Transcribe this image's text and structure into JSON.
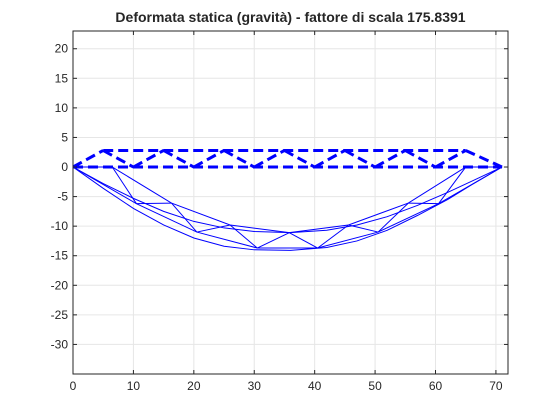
{
  "chart_data": {
    "type": "line",
    "title": "Deformata statica (gravità) - fattore di scala 175.8391",
    "xlabel": "",
    "ylabel": "",
    "xlim": [
      0,
      72
    ],
    "ylim": [
      -35,
      23
    ],
    "grid": true,
    "x_ticks": [
      0,
      10,
      20,
      30,
      40,
      50,
      60,
      70
    ],
    "y_ticks": [
      20,
      15,
      10,
      5,
      0,
      -5,
      -10,
      -15,
      -20,
      -25,
      -30
    ],
    "series": [
      {
        "role": "undeformed-truss",
        "line_style": "dashed",
        "color": "#0000ff",
        "segments": [
          [
            [
              0,
              0
            ],
            [
              71,
              0
            ]
          ],
          [
            [
              5,
              2.8
            ],
            [
              65,
              2.8
            ]
          ],
          [
            [
              0,
              0
            ],
            [
              5,
              2.8
            ]
          ],
          [
            [
              5,
              2.8
            ],
            [
              10,
              0
            ]
          ],
          [
            [
              10,
              0
            ],
            [
              15,
              2.8
            ]
          ],
          [
            [
              15,
              2.8
            ],
            [
              20,
              0
            ]
          ],
          [
            [
              20,
              0
            ],
            [
              25,
              2.8
            ]
          ],
          [
            [
              25,
              2.8
            ],
            [
              30,
              0
            ]
          ],
          [
            [
              30,
              0
            ],
            [
              35,
              2.8
            ]
          ],
          [
            [
              35,
              2.8
            ],
            [
              40,
              0
            ]
          ],
          [
            [
              40,
              0
            ],
            [
              45,
              2.8
            ]
          ],
          [
            [
              45,
              2.8
            ],
            [
              50,
              0
            ]
          ],
          [
            [
              50,
              0
            ],
            [
              55,
              2.8
            ]
          ],
          [
            [
              55,
              2.8
            ],
            [
              60,
              0
            ]
          ],
          [
            [
              60,
              0
            ],
            [
              65,
              2.8
            ]
          ],
          [
            [
              65,
              2.8
            ],
            [
              71,
              0
            ]
          ]
        ]
      },
      {
        "role": "deformed-truss",
        "line_style": "solid",
        "color": "#0000ff",
        "segments": [
          [
            [
              0,
              0
            ],
            [
              10.5,
              -6.2
            ],
            [
              20.5,
              -11
            ],
            [
              30.5,
              -13.7
            ],
            [
              40.5,
              -13.7
            ],
            [
              50.5,
              -11
            ],
            [
              60.5,
              -6.2
            ],
            [
              71,
              0
            ]
          ],
          [
            [
              6.5,
              0
            ],
            [
              16.3,
              -6.1
            ],
            [
              26,
              -9.8
            ],
            [
              35.8,
              -11.1
            ],
            [
              45.6,
              -9.8
            ],
            [
              55.5,
              -6.1
            ],
            [
              65,
              0
            ]
          ],
          [
            [
              0,
              0
            ],
            [
              6.5,
              0
            ]
          ],
          [
            [
              65,
              0
            ],
            [
              71,
              0
            ]
          ],
          [
            [
              6.5,
              0
            ],
            [
              10.5,
              -6.2
            ]
          ],
          [
            [
              10.5,
              -6.2
            ],
            [
              16.3,
              -6.1
            ]
          ],
          [
            [
              16.3,
              -6.1
            ],
            [
              20.5,
              -11
            ]
          ],
          [
            [
              20.5,
              -11
            ],
            [
              26,
              -9.8
            ]
          ],
          [
            [
              26,
              -9.8
            ],
            [
              30.5,
              -13.7
            ]
          ],
          [
            [
              30.5,
              -13.7
            ],
            [
              35.8,
              -11.1
            ]
          ],
          [
            [
              35.8,
              -11.1
            ],
            [
              40.5,
              -13.7
            ]
          ],
          [
            [
              40.5,
              -13.7
            ],
            [
              45.6,
              -9.8
            ]
          ],
          [
            [
              45.6,
              -9.8
            ],
            [
              50.5,
              -11
            ]
          ],
          [
            [
              50.5,
              -11
            ],
            [
              55.5,
              -6.1
            ]
          ],
          [
            [
              55.5,
              -6.1
            ],
            [
              60.5,
              -6.2
            ]
          ],
          [
            [
              60.5,
              -6.2
            ],
            [
              65,
              0
            ]
          ]
        ]
      },
      {
        "role": "deformed-chord-curves",
        "line_style": "solid",
        "color": "#0000ff",
        "curves": [
          [
            [
              0,
              0
            ],
            [
              5,
              -3.6
            ],
            [
              10,
              -7
            ],
            [
              15,
              -9.8
            ],
            [
              20,
              -12
            ],
            [
              25,
              -13.4
            ],
            [
              30,
              -14
            ],
            [
              36,
              -14.1
            ],
            [
              42,
              -13.6
            ],
            [
              47,
              -12.5
            ],
            [
              52,
              -10.7
            ],
            [
              57,
              -8.2
            ],
            [
              62,
              -5.5
            ],
            [
              66,
              -3
            ],
            [
              71,
              0
            ]
          ],
          [
            [
              0,
              0
            ],
            [
              5,
              -2.8
            ],
            [
              10,
              -5.3
            ],
            [
              15,
              -7.5
            ],
            [
              20,
              -9.2
            ],
            [
              25,
              -10.3
            ],
            [
              30,
              -10.9
            ],
            [
              36,
              -11.1
            ],
            [
              42,
              -10.7
            ],
            [
              47,
              -9.8
            ],
            [
              52,
              -8.4
            ],
            [
              57,
              -6.5
            ],
            [
              62,
              -4.3
            ],
            [
              66,
              -2.4
            ],
            [
              71,
              0
            ]
          ]
        ]
      }
    ]
  }
}
